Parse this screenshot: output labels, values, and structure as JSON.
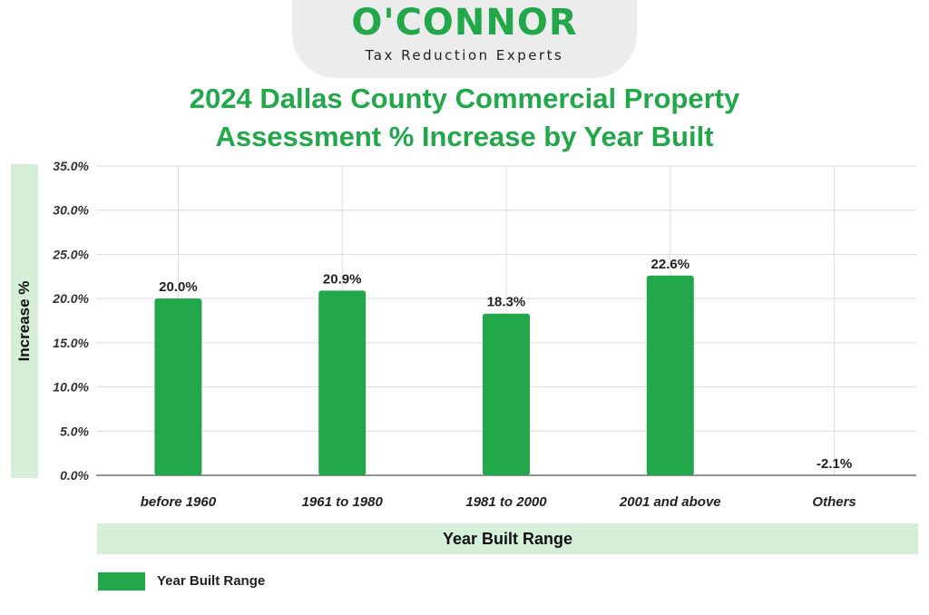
{
  "brand": {
    "name": "O'CONNOR",
    "tagline": "Tax Reduction Experts",
    "color": "#22a84a"
  },
  "chart_data": {
    "type": "bar",
    "title": "2024 Dallas County Commercial Property Assessment % Increase by Year Built",
    "title_lines": [
      "2024 Dallas County Commercial Property",
      "Assessment % Increase by Year Built"
    ],
    "xlabel": "Year Built Range",
    "ylabel": "Increase %",
    "categories": [
      "before 1960",
      "1961 to 1980",
      "1981 to 2000",
      "2001 and above",
      "Others"
    ],
    "series": [
      {
        "name": "Year Built Range",
        "values": [
          20.0,
          20.9,
          18.3,
          22.6,
          -2.1
        ],
        "labels": [
          "20.0%",
          "20.9%",
          "18.3%",
          "22.6%",
          "-2.1%"
        ],
        "color": "#22a84a"
      }
    ],
    "ylim": [
      0,
      35
    ],
    "yticks": [
      0,
      5,
      10,
      15,
      20,
      25,
      30,
      35
    ],
    "ytick_labels": [
      "0.0%",
      "5.0%",
      "10.0%",
      "15.0%",
      "20.0%",
      "25.0%",
      "30.0%",
      "35.0%"
    ],
    "grid": true,
    "legend_position": "bottom-left"
  }
}
